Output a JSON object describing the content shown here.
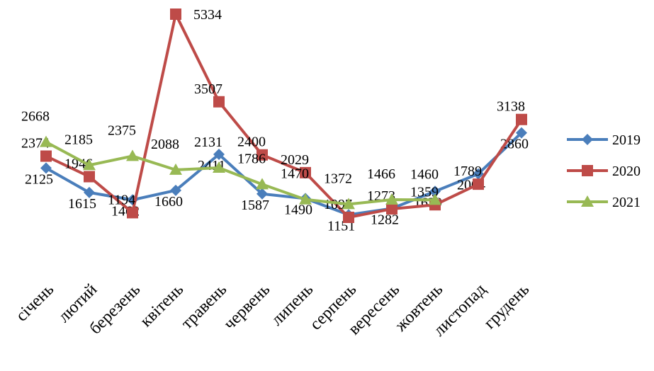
{
  "chart_data": {
    "type": "line",
    "categories": [
      "січень",
      "лютий",
      "березень",
      "квітень",
      "травень",
      "червень",
      "липень",
      "серпень",
      "вересень",
      "жовтень",
      "листопад",
      "грудень"
    ],
    "series": [
      {
        "name": "2019",
        "color": "#4a7ebb",
        "marker": "diamond",
        "values": [
          2125,
          1615,
          1462,
          1660,
          2411,
          1587,
          1490,
          1151,
          1282,
          1639,
          2004,
          2860
        ]
      },
      {
        "name": "2020",
        "color": "#be4b48",
        "marker": "square",
        "values": [
          2374,
          1946,
          1194,
          5334,
          3507,
          2400,
          2029,
          1097,
          1273,
          1359,
          1789,
          3138
        ]
      },
      {
        "name": "2021",
        "color": "#98b954",
        "marker": "triangle",
        "values": [
          2668,
          2185,
          2375,
          2088,
          2131,
          1786,
          1470,
          1372,
          1466,
          1460,
          null,
          null
        ]
      }
    ],
    "legend": "right"
  }
}
